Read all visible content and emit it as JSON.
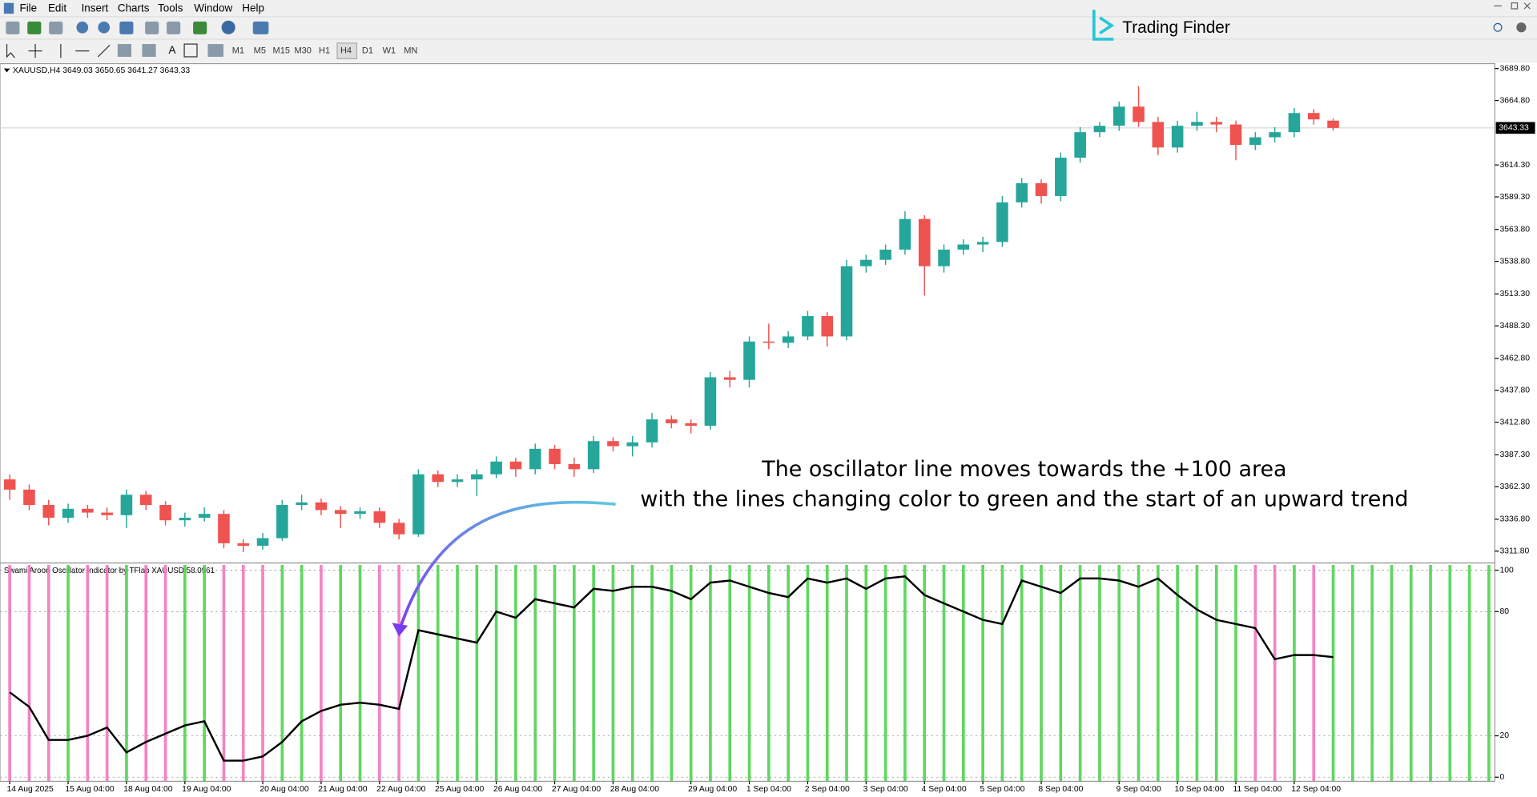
{
  "menu": [
    "File",
    "Edit",
    "Insert",
    "Charts",
    "Tools",
    "Window",
    "Help"
  ],
  "timeframes": [
    "M1",
    "M5",
    "M15",
    "M30",
    "H1",
    "H4",
    "D1",
    "W1",
    "MN"
  ],
  "logo": "Trading Finder",
  "chart_data": [
    {
      "type": "candlestick",
      "title": "XAUUSD,H4  3649.03 3650.65 3641.27 3643.33",
      "categories": [
        "14 Aug 2025",
        null,
        null,
        "15 Aug 04:00",
        null,
        null,
        "18 Aug 04:00",
        null,
        null,
        "19 Aug 04:00",
        null,
        null,
        null,
        "20 Aug 04:00",
        null,
        null,
        "21 Aug 04:00",
        null,
        null,
        "22 Aug 04:00",
        null,
        null,
        "25 Aug 04:00",
        null,
        null,
        "26 Aug 04:00",
        null,
        null,
        "27 Aug 04:00",
        null,
        null,
        "28 Aug 04:00",
        null,
        null,
        null,
        "29 Aug 04:00",
        null,
        null,
        "1 Sep 04:00",
        null,
        null,
        "2 Sep 04:00",
        null,
        null,
        "3 Sep 04:00",
        null,
        null,
        "4 Sep 04:00",
        null,
        null,
        "5 Sep 04:00",
        null,
        null,
        "8 Sep 04:00",
        null,
        null,
        null,
        "9 Sep 04:00",
        null,
        null,
        "10 Sep 04:00",
        null,
        null,
        "11 Sep 04:00",
        null,
        null,
        "12 Sep 04:00",
        null,
        null
      ],
      "open": [
        3368,
        3360,
        3348,
        3338,
        3345,
        3342,
        3340,
        3356,
        3348,
        3336,
        3338,
        3341,
        3318,
        3316,
        3322,
        3348,
        3350,
        3344,
        3341,
        3343,
        3334,
        3325,
        3372,
        3366,
        3368,
        3372,
        3382,
        3376,
        3392,
        3380,
        3376,
        3398,
        3394,
        3397,
        3415,
        3412,
        3410,
        3448,
        3446,
        3476,
        3475,
        3480,
        3496,
        3480,
        3535,
        3540,
        3548,
        3572,
        3535,
        3548,
        3552,
        3554,
        3585,
        3600,
        3590,
        3620,
        3640,
        3645,
        3660,
        3648,
        3628,
        3645,
        3648,
        3646,
        3630,
        3636,
        3640,
        3655,
        3649.03
      ],
      "high": [
        3372,
        3364,
        3352,
        3349,
        3348,
        3346,
        3360,
        3359,
        3351,
        3342,
        3346,
        3344,
        3321,
        3326,
        3352,
        3356,
        3353,
        3347,
        3346,
        3346,
        3337,
        3376,
        3375,
        3372,
        3376,
        3386,
        3385,
        3396,
        3395,
        3385,
        3402,
        3401,
        3402,
        3420,
        3418,
        3415,
        3452,
        3453,
        3480,
        3490,
        3484,
        3500,
        3499,
        3540,
        3544,
        3552,
        3578,
        3575,
        3552,
        3556,
        3558,
        3590,
        3604,
        3603,
        3624,
        3644,
        3648,
        3664,
        3676,
        3652,
        3649,
        3656,
        3652,
        3649,
        3640,
        3644,
        3659,
        3658,
        3650.65
      ],
      "low": [
        3352,
        3344,
        3332,
        3334,
        3338,
        3336,
        3330,
        3344,
        3332,
        3331,
        3335,
        3314,
        3311,
        3313,
        3320,
        3344,
        3340,
        3330,
        3337,
        3330,
        3321,
        3323,
        3362,
        3362,
        3355,
        3369,
        3370,
        3372,
        3376,
        3370,
        3373,
        3390,
        3386,
        3393,
        3408,
        3404,
        3407,
        3440,
        3440,
        3470,
        3471,
        3477,
        3472,
        3477,
        3530,
        3536,
        3544,
        3512,
        3530,
        3544,
        3546,
        3550,
        3581,
        3584,
        3586,
        3616,
        3636,
        3641,
        3644,
        3622,
        3624,
        3641,
        3640,
        3618,
        3626,
        3632,
        3636,
        3646,
        3641.27
      ],
      "close": [
        3360,
        3348,
        3338,
        3345,
        3342,
        3340,
        3356,
        3348,
        3336,
        3338,
        3341,
        3318,
        3316,
        3322,
        3348,
        3350,
        3344,
        3341,
        3343,
        3334,
        3325,
        3372,
        3366,
        3368,
        3372,
        3382,
        3376,
        3392,
        3380,
        3376,
        3398,
        3394,
        3397,
        3415,
        3412,
        3410,
        3448,
        3446,
        3476,
        3475,
        3480,
        3496,
        3480,
        3535,
        3540,
        3548,
        3572,
        3535,
        3548,
        3552,
        3554,
        3585,
        3600,
        3590,
        3620,
        3640,
        3645,
        3660,
        3648,
        3628,
        3645,
        3648,
        3646,
        3630,
        3636,
        3640,
        3655,
        3650,
        3643.33
      ],
      "up_color": "#26a69a",
      "down_color": "#ef5350",
      "ylim": [
        3303.3,
        3692.9
      ],
      "yticks": [
        {
          "value": 3689.8,
          "label": "3689.80"
        },
        {
          "value": 3664.8,
          "label": "3664.80"
        },
        {
          "value": 3614.3,
          "label": "3614.30"
        },
        {
          "value": 3589.3,
          "label": "3589.30"
        },
        {
          "value": 3563.8,
          "label": "3563.80"
        },
        {
          "value": 3538.8,
          "label": "3538.80"
        },
        {
          "value": 3513.3,
          "label": "3513.30"
        },
        {
          "value": 3488.3,
          "label": "3488.30"
        },
        {
          "value": 3462.8,
          "label": "3462.80"
        },
        {
          "value": 3437.8,
          "label": "3437.80"
        },
        {
          "value": 3412.8,
          "label": "3412.80"
        },
        {
          "value": 3387.3,
          "label": "3387.30"
        },
        {
          "value": 3362.3,
          "label": "3362.30"
        },
        {
          "value": 3336.8,
          "label": "3336.80"
        },
        {
          "value": 3311.8,
          "label": "3311.80"
        }
      ],
      "last_price": {
        "value": 3643.33,
        "label": "3643.33"
      },
      "annotations": [
        "The oscillator line moves towards the +100 area",
        "with the lines changing color to green and the start of an upward trend"
      ]
    },
    {
      "type": "line",
      "title": "Swami Aroon Oscillator Indicator by TFlab XAUUSD 58.0961",
      "values": [
        41,
        34,
        18,
        18,
        20,
        24,
        12,
        17,
        21,
        25,
        27,
        8,
        8,
        10,
        17,
        27,
        32,
        35,
        36,
        35,
        33,
        71,
        69,
        67,
        65,
        80,
        77,
        86,
        84,
        82,
        91,
        90,
        92,
        92,
        90,
        86,
        94,
        95,
        92,
        89,
        87,
        96,
        94,
        96,
        91,
        96,
        97,
        88,
        84,
        80,
        76,
        74,
        95,
        92,
        89,
        96,
        96,
        95,
        92,
        96,
        88,
        81,
        76,
        74,
        72,
        57,
        59,
        59,
        58
      ],
      "color": "#000000",
      "bar_colors": [
        "#f277bd",
        "#f277bd",
        "#f277bd",
        "#4fd34f",
        "#f277bd",
        "#f277bd",
        "#4fd34f",
        "#f277bd",
        "#f277bd",
        "#4fd34f",
        "#4fd34f",
        "#f277bd",
        "#f277bd",
        "#f277bd",
        "#4fd34f",
        "#4fd34f",
        "#f277bd",
        "#4fd34f",
        "#4fd34f",
        "#f277bd",
        "#f277bd",
        "#4fd34f",
        "#4fd34f",
        "#4fd34f",
        "#4fd34f",
        "#4fd34f",
        "#4fd34f",
        "#4fd34f",
        "#4fd34f",
        "#4fd34f",
        "#4fd34f",
        "#4fd34f",
        "#4fd34f",
        "#4fd34f",
        "#4fd34f",
        "#4fd34f",
        "#4fd34f",
        "#4fd34f",
        "#4fd34f",
        "#4fd34f",
        "#4fd34f",
        "#4fd34f",
        "#4fd34f",
        "#4fd34f",
        "#4fd34f",
        "#4fd34f",
        "#4fd34f",
        "#4fd34f",
        "#4fd34f",
        "#4fd34f",
        "#4fd34f",
        "#4fd34f",
        "#4fd34f",
        "#4fd34f",
        "#4fd34f",
        "#4fd34f",
        "#4fd34f",
        "#4fd34f",
        "#4fd34f",
        "#4fd34f",
        "#4fd34f",
        "#4fd34f",
        "#4fd34f",
        "#4fd34f",
        "#f277bd",
        "#f277bd",
        "#4fd34f",
        "#f277bd",
        "#4fd34f"
      ],
      "ylim": [
        -2,
        103
      ],
      "yticks": [
        100,
        80,
        20,
        0
      ]
    }
  ]
}
